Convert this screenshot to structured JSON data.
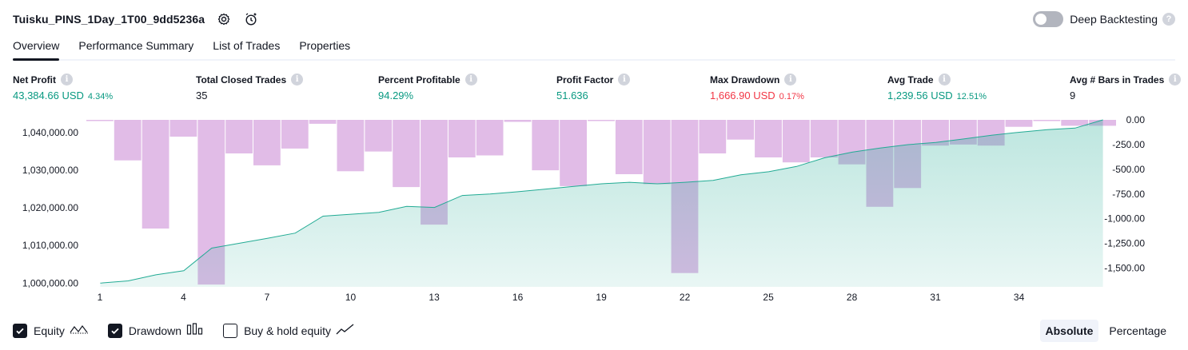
{
  "header": {
    "title": "Tuisku_PINS_1Day_1T00_9dd5236a",
    "deep_backtesting_label": "Deep Backtesting",
    "deep_backtesting_enabled": false,
    "help_glyph": "?"
  },
  "tabs": [
    {
      "label": "Overview",
      "active": true
    },
    {
      "label": "Performance Summary",
      "active": false
    },
    {
      "label": "List of Trades",
      "active": false
    },
    {
      "label": "Properties",
      "active": false
    }
  ],
  "metrics": {
    "info_glyph": "i",
    "net_profit": {
      "label": "Net Profit",
      "value": "43,384.66 USD",
      "pct": "4.34%",
      "tone": "pos"
    },
    "total_closed_trades": {
      "label": "Total Closed Trades",
      "value": "35",
      "tone": "neutral"
    },
    "percent_profitable": {
      "label": "Percent Profitable",
      "value": "94.29%",
      "tone": "pos"
    },
    "profit_factor": {
      "label": "Profit Factor",
      "value": "51.636",
      "tone": "pos"
    },
    "max_drawdown": {
      "label": "Max Drawdown",
      "value": "1,666.90 USD",
      "pct": "0.17%",
      "tone": "neg"
    },
    "avg_trade": {
      "label": "Avg Trade",
      "value": "1,239.56 USD",
      "pct": "12.51%",
      "tone": "pos"
    },
    "avg_bars": {
      "label": "Avg # Bars in Trades",
      "value": "9",
      "tone": "neutral"
    }
  },
  "chart_data": {
    "type": "line",
    "x": [
      1,
      2,
      3,
      4,
      5,
      6,
      7,
      8,
      9,
      10,
      11,
      12,
      13,
      14,
      15,
      16,
      17,
      18,
      19,
      20,
      21,
      22,
      23,
      24,
      25,
      26,
      27,
      28,
      29,
      30,
      31,
      32,
      33,
      34,
      35,
      36,
      37
    ],
    "x_tick_labels": [
      "1",
      "4",
      "7",
      "10",
      "13",
      "16",
      "19",
      "22",
      "25",
      "28",
      "31",
      "34"
    ],
    "series": [
      {
        "name": "Equity",
        "axis": "left",
        "color": "#22ab94",
        "fill": "#d3f0e8",
        "values": [
          1000000,
          1000600,
          1002200,
          1003300,
          1009300,
          1010600,
          1011900,
          1013300,
          1017800,
          1018300,
          1018800,
          1020400,
          1020100,
          1023300,
          1023700,
          1024300,
          1025000,
          1025700,
          1026400,
          1026800,
          1026400,
          1026800,
          1027300,
          1028800,
          1029600,
          1031000,
          1033300,
          1034800,
          1035900,
          1036800,
          1037400,
          1038300,
          1039300,
          1040100,
          1040800,
          1041200,
          1043384.66
        ]
      },
      {
        "name": "Drawdown",
        "axis": "right",
        "color": "#ce93d8",
        "values": [
          -10,
          -410,
          -1100,
          -170,
          -1666.9,
          -340,
          -460,
          -290,
          -40,
          -520,
          -320,
          -680,
          -1060,
          -380,
          -360,
          -20,
          -510,
          -670,
          0,
          -550,
          -650,
          -1550,
          -340,
          -200,
          -380,
          -430,
          -380,
          -450,
          -880,
          -690,
          -260,
          -250,
          -260,
          -70,
          -10,
          -60,
          -60
        ]
      }
    ],
    "left_axis_ticks": [
      "1,040,000.00",
      "1,030,000.00",
      "1,020,000.00",
      "1,010,000.00",
      "1,000,000.00"
    ],
    "right_axis_ticks": [
      "0.00",
      "-250.00",
      "-500.00",
      "-750.00",
      "-1,000.00",
      "-1,250.00",
      "-1,500.00"
    ],
    "ylim_left": [
      999000,
      1043384.66
    ],
    "ylim_right": [
      -1690,
      0
    ],
    "grid": false
  },
  "legend": {
    "items": [
      {
        "label": "Equity",
        "checked": true,
        "icon": "equity-line-icon"
      },
      {
        "label": "Drawdown",
        "checked": true,
        "icon": "drawdown-bars-icon"
      },
      {
        "label": "Buy & hold equity",
        "checked": false,
        "icon": "buy-hold-line-icon"
      }
    ]
  },
  "mode": {
    "absolute_label": "Absolute",
    "percentage_label": "Percentage",
    "selected": "Absolute"
  }
}
